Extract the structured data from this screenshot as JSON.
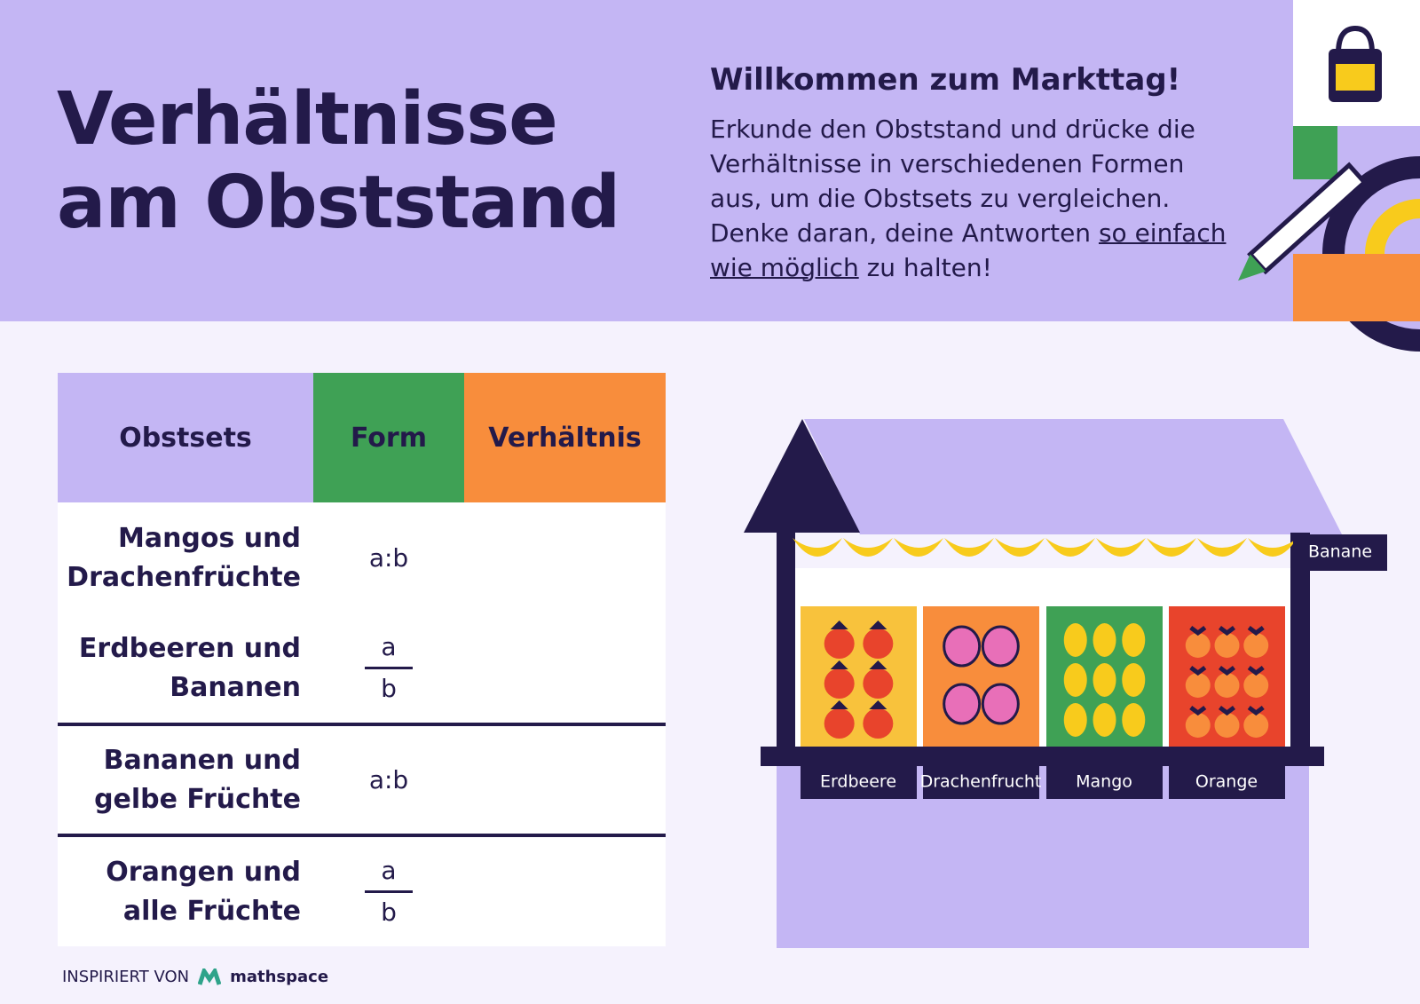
{
  "header": {
    "title": "Verhältnisse am Obststand",
    "subtitle": "Willkommen zum Markttag!",
    "intro_before": "Erkunde den Obststand und drücke die Verhältnisse in verschiedenen Formen aus, um die Obstsets zu vergleichen. Denke daran, deine Antworten ",
    "intro_underlined": "so einfach wie möglich",
    "intro_after": " zu halten!"
  },
  "table": {
    "headers": [
      "Obstsets",
      "Form",
      "Verhältnis"
    ],
    "rows": [
      {
        "set": "Mangos und Drachenfrüchte",
        "form": "a:b"
      },
      {
        "set": "Erdbeeren und Bananen",
        "form": {
          "numerator": "a",
          "denominator": "b"
        }
      },
      {
        "set": "Bananen und gelbe Früchte",
        "form": "a:b"
      },
      {
        "set": "Orangen und alle Früchte",
        "form": {
          "numerator": "a",
          "denominator": "b"
        }
      }
    ]
  },
  "stall": {
    "banner": "Banane",
    "labels": [
      "Erdbeere",
      "Drachenfrucht",
      "Mango",
      "Orange"
    ]
  },
  "footer": {
    "credit": "INSPIRIERT VON",
    "brand": "mathspace"
  }
}
